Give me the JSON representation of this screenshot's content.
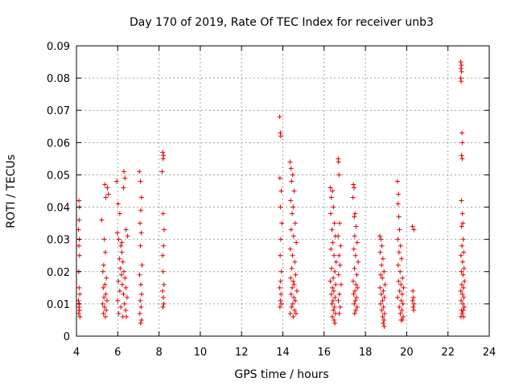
{
  "chart_data": {
    "type": "scatter",
    "title": "Day 170 of 2019, Rate Of TEC Index for receiver unb3",
    "xlabel": "GPS time / hours",
    "ylabel": "ROTI / TECUs",
    "xlim": [
      4,
      24
    ],
    "ylim": [
      0,
      0.09
    ],
    "grid": true,
    "marker": "+",
    "color": "#e00000",
    "x_ticks": [
      "4",
      "6",
      "8",
      "10",
      "12",
      "14",
      "16",
      "18",
      "20",
      "22",
      "24"
    ],
    "y_ticks": [
      "0",
      "0.01",
      "0.02",
      "0.03",
      "0.04",
      "0.05",
      "0.06",
      "0.07",
      "0.08",
      "0.09"
    ],
    "series": [
      {
        "name": "unb3",
        "points": [
          [
            4.12,
            0.042
          ],
          [
            4.15,
            0.04
          ],
          [
            4.13,
            0.036
          ],
          [
            4.1,
            0.033
          ],
          [
            4.14,
            0.03
          ],
          [
            4.12,
            0.028
          ],
          [
            4.15,
            0.025
          ],
          [
            4.11,
            0.02
          ],
          [
            4.13,
            0.015
          ],
          [
            4.16,
            0.013
          ],
          [
            4.1,
            0.011
          ],
          [
            4.14,
            0.01
          ],
          [
            4.12,
            0.009
          ],
          [
            4.15,
            0.008
          ],
          [
            4.11,
            0.007
          ],
          [
            4.17,
            0.006
          ],
          [
            5.22,
            0.036
          ],
          [
            5.35,
            0.03
          ],
          [
            5.4,
            0.026
          ],
          [
            5.32,
            0.022
          ],
          [
            5.28,
            0.02
          ],
          [
            5.45,
            0.018
          ],
          [
            5.38,
            0.016
          ],
          [
            5.3,
            0.015
          ],
          [
            5.42,
            0.013
          ],
          [
            5.33,
            0.012
          ],
          [
            5.48,
            0.011
          ],
          [
            5.27,
            0.01
          ],
          [
            5.36,
            0.009
          ],
          [
            5.44,
            0.008
          ],
          [
            5.31,
            0.007
          ],
          [
            5.4,
            0.006
          ],
          [
            5.38,
            0.047
          ],
          [
            5.5,
            0.046
          ],
          [
            5.55,
            0.044
          ],
          [
            5.42,
            0.043
          ],
          [
            5.95,
            0.048
          ],
          [
            6.02,
            0.041
          ],
          [
            6.1,
            0.038
          ],
          [
            5.98,
            0.032
          ],
          [
            6.05,
            0.03
          ],
          [
            6.15,
            0.028
          ],
          [
            6.2,
            0.026
          ],
          [
            6.08,
            0.024
          ],
          [
            6.25,
            0.023
          ],
          [
            6.12,
            0.021
          ],
          [
            6.3,
            0.02
          ],
          [
            6.18,
            0.019
          ],
          [
            6.35,
            0.018
          ],
          [
            6.03,
            0.017
          ],
          [
            6.22,
            0.016
          ],
          [
            6.4,
            0.015
          ],
          [
            6.1,
            0.014
          ],
          [
            6.28,
            0.013
          ],
          [
            6.45,
            0.012
          ],
          [
            6.0,
            0.011
          ],
          [
            6.33,
            0.01
          ],
          [
            6.15,
            0.009
          ],
          [
            6.38,
            0.008
          ],
          [
            6.05,
            0.007
          ],
          [
            6.25,
            0.006
          ],
          [
            6.42,
            0.006
          ],
          [
            6.3,
            0.051
          ],
          [
            6.35,
            0.049
          ],
          [
            6.28,
            0.046
          ],
          [
            6.4,
            0.033
          ],
          [
            6.48,
            0.031
          ],
          [
            6.2,
            0.029
          ],
          [
            7.05,
            0.051
          ],
          [
            7.1,
            0.048
          ],
          [
            7.15,
            0.043
          ],
          [
            7.12,
            0.039
          ],
          [
            7.08,
            0.035
          ],
          [
            7.14,
            0.032
          ],
          [
            7.1,
            0.028
          ],
          [
            7.18,
            0.022
          ],
          [
            7.06,
            0.019
          ],
          [
            7.12,
            0.016
          ],
          [
            7.16,
            0.013
          ],
          [
            7.09,
            0.011
          ],
          [
            7.13,
            0.009
          ],
          [
            7.07,
            0.007
          ],
          [
            7.15,
            0.005
          ],
          [
            7.11,
            0.004
          ],
          [
            8.18,
            0.057
          ],
          [
            8.22,
            0.056
          ],
          [
            8.2,
            0.055
          ],
          [
            8.15,
            0.051
          ],
          [
            8.2,
            0.038
          ],
          [
            8.25,
            0.033
          ],
          [
            8.22,
            0.028
          ],
          [
            8.18,
            0.025
          ],
          [
            8.2,
            0.02
          ],
          [
            8.24,
            0.016
          ],
          [
            8.17,
            0.014
          ],
          [
            8.21,
            0.012
          ],
          [
            8.23,
            0.01
          ],
          [
            8.19,
            0.009
          ],
          [
            13.85,
            0.068
          ],
          [
            13.88,
            0.063
          ],
          [
            13.9,
            0.062
          ],
          [
            13.86,
            0.049
          ],
          [
            13.92,
            0.045
          ],
          [
            13.88,
            0.04
          ],
          [
            13.95,
            0.035
          ],
          [
            13.9,
            0.03
          ],
          [
            13.87,
            0.025
          ],
          [
            13.93,
            0.02
          ],
          [
            13.89,
            0.017
          ],
          [
            13.85,
            0.015
          ],
          [
            13.91,
            0.013
          ],
          [
            13.88,
            0.011
          ],
          [
            13.94,
            0.01
          ],
          [
            13.86,
            0.009
          ],
          [
            14.35,
            0.054
          ],
          [
            14.4,
            0.052
          ],
          [
            14.48,
            0.05
          ],
          [
            14.42,
            0.048
          ],
          [
            14.55,
            0.045
          ],
          [
            14.38,
            0.042
          ],
          [
            14.5,
            0.04
          ],
          [
            14.45,
            0.038
          ],
          [
            14.6,
            0.035
          ],
          [
            14.4,
            0.033
          ],
          [
            14.52,
            0.031
          ],
          [
            14.65,
            0.029
          ],
          [
            14.36,
            0.027
          ],
          [
            14.47,
            0.025
          ],
          [
            14.58,
            0.023
          ],
          [
            14.43,
            0.021
          ],
          [
            14.62,
            0.019
          ],
          [
            14.38,
            0.018
          ],
          [
            14.5,
            0.017
          ],
          [
            14.55,
            0.016
          ],
          [
            14.45,
            0.015
          ],
          [
            14.68,
            0.014
          ],
          [
            14.4,
            0.013
          ],
          [
            14.53,
            0.012
          ],
          [
            14.6,
            0.011
          ],
          [
            14.48,
            0.01
          ],
          [
            14.42,
            0.009
          ],
          [
            14.57,
            0.008
          ],
          [
            14.36,
            0.007
          ],
          [
            14.64,
            0.007
          ],
          [
            14.5,
            0.006
          ],
          [
            16.3,
            0.046
          ],
          [
            16.4,
            0.045
          ],
          [
            16.35,
            0.043
          ],
          [
            16.45,
            0.04
          ],
          [
            16.32,
            0.038
          ],
          [
            16.5,
            0.035
          ],
          [
            16.38,
            0.033
          ],
          [
            16.55,
            0.031
          ],
          [
            16.42,
            0.029
          ],
          [
            16.33,
            0.027
          ],
          [
            16.48,
            0.025
          ],
          [
            16.58,
            0.023
          ],
          [
            16.36,
            0.021
          ],
          [
            16.52,
            0.02
          ],
          [
            16.44,
            0.018
          ],
          [
            16.3,
            0.017
          ],
          [
            16.56,
            0.016
          ],
          [
            16.4,
            0.015
          ],
          [
            16.47,
            0.014
          ],
          [
            16.35,
            0.013
          ],
          [
            16.53,
            0.012
          ],
          [
            16.43,
            0.011
          ],
          [
            16.38,
            0.01
          ],
          [
            16.5,
            0.009
          ],
          [
            16.45,
            0.008
          ],
          [
            16.55,
            0.007
          ],
          [
            16.4,
            0.006
          ],
          [
            16.48,
            0.005
          ],
          [
            16.52,
            0.004
          ],
          [
            16.68,
            0.055
          ],
          [
            16.7,
            0.054
          ],
          [
            16.72,
            0.05
          ],
          [
            16.75,
            0.035
          ],
          [
            16.68,
            0.031
          ],
          [
            16.8,
            0.028
          ],
          [
            16.72,
            0.025
          ],
          [
            16.77,
            0.022
          ],
          [
            16.7,
            0.019
          ],
          [
            16.82,
            0.016
          ],
          [
            16.74,
            0.013
          ],
          [
            16.69,
            0.011
          ],
          [
            16.78,
            0.009
          ],
          [
            16.73,
            0.007
          ],
          [
            17.42,
            0.047
          ],
          [
            17.45,
            0.046
          ],
          [
            17.4,
            0.043
          ],
          [
            17.5,
            0.038
          ],
          [
            17.46,
            0.037
          ],
          [
            17.55,
            0.034
          ],
          [
            17.48,
            0.031
          ],
          [
            17.6,
            0.029
          ],
          [
            17.44,
            0.027
          ],
          [
            17.52,
            0.025
          ],
          [
            17.65,
            0.023
          ],
          [
            17.47,
            0.021
          ],
          [
            17.58,
            0.019
          ],
          [
            17.41,
            0.017
          ],
          [
            17.54,
            0.016
          ],
          [
            17.62,
            0.015
          ],
          [
            17.49,
            0.014
          ],
          [
            17.43,
            0.013
          ],
          [
            17.57,
            0.012
          ],
          [
            17.51,
            0.011
          ],
          [
            17.46,
            0.01
          ],
          [
            17.6,
            0.009
          ],
          [
            17.53,
            0.008
          ],
          [
            17.48,
            0.007
          ],
          [
            18.7,
            0.031
          ],
          [
            18.75,
            0.03
          ],
          [
            18.8,
            0.028
          ],
          [
            18.72,
            0.026
          ],
          [
            18.85,
            0.024
          ],
          [
            18.78,
            0.022
          ],
          [
            18.9,
            0.02
          ],
          [
            18.74,
            0.019
          ],
          [
            18.82,
            0.018
          ],
          [
            18.95,
            0.016
          ],
          [
            18.71,
            0.015
          ],
          [
            18.87,
            0.014
          ],
          [
            18.77,
            0.013
          ],
          [
            18.92,
            0.012
          ],
          [
            18.83,
            0.011
          ],
          [
            18.73,
            0.01
          ],
          [
            18.88,
            0.009
          ],
          [
            18.79,
            0.008
          ],
          [
            18.93,
            0.007
          ],
          [
            18.84,
            0.006
          ],
          [
            18.9,
            0.005
          ],
          [
            18.86,
            0.004
          ],
          [
            18.91,
            0.003
          ],
          [
            19.55,
            0.048
          ],
          [
            19.6,
            0.044
          ],
          [
            19.58,
            0.041
          ],
          [
            19.62,
            0.037
          ],
          [
            19.65,
            0.033
          ],
          [
            19.57,
            0.03
          ],
          [
            19.7,
            0.028
          ],
          [
            19.63,
            0.026
          ],
          [
            19.75,
            0.024
          ],
          [
            19.59,
            0.022
          ],
          [
            19.68,
            0.02
          ],
          [
            19.8,
            0.018
          ],
          [
            19.61,
            0.017
          ],
          [
            19.72,
            0.016
          ],
          [
            19.85,
            0.015
          ],
          [
            19.66,
            0.014
          ],
          [
            19.78,
            0.013
          ],
          [
            19.56,
            0.012
          ],
          [
            19.74,
            0.011
          ],
          [
            19.82,
            0.01
          ],
          [
            19.64,
            0.009
          ],
          [
            19.77,
            0.008
          ],
          [
            19.69,
            0.007
          ],
          [
            19.83,
            0.006
          ],
          [
            19.73,
            0.005
          ],
          [
            19.79,
            0.005
          ],
          [
            20.28,
            0.034
          ],
          [
            20.35,
            0.033
          ],
          [
            20.3,
            0.014
          ],
          [
            20.33,
            0.012
          ],
          [
            20.28,
            0.011
          ],
          [
            20.36,
            0.01
          ],
          [
            20.31,
            0.009
          ],
          [
            20.34,
            0.008
          ],
          [
            22.62,
            0.085
          ],
          [
            22.65,
            0.084
          ],
          [
            22.63,
            0.083
          ],
          [
            22.66,
            0.082
          ],
          [
            22.62,
            0.08
          ],
          [
            22.64,
            0.079
          ],
          [
            22.68,
            0.063
          ],
          [
            22.7,
            0.06
          ],
          [
            22.66,
            0.056
          ],
          [
            22.69,
            0.055
          ],
          [
            22.65,
            0.042
          ],
          [
            22.7,
            0.038
          ],
          [
            22.72,
            0.035
          ],
          [
            22.66,
            0.034
          ],
          [
            22.74,
            0.03
          ],
          [
            22.68,
            0.028
          ],
          [
            22.76,
            0.026
          ],
          [
            22.63,
            0.025
          ],
          [
            22.71,
            0.023
          ],
          [
            22.78,
            0.021
          ],
          [
            22.65,
            0.02
          ],
          [
            22.73,
            0.019
          ],
          [
            22.8,
            0.017
          ],
          [
            22.67,
            0.016
          ],
          [
            22.75,
            0.015
          ],
          [
            22.62,
            0.014
          ],
          [
            22.7,
            0.013
          ],
          [
            22.77,
            0.012
          ],
          [
            22.64,
            0.011
          ],
          [
            22.72,
            0.01
          ],
          [
            22.79,
            0.009
          ],
          [
            22.66,
            0.008
          ],
          [
            22.74,
            0.008
          ],
          [
            22.69,
            0.007
          ],
          [
            22.76,
            0.006
          ],
          [
            22.63,
            0.006
          ]
        ]
      }
    ]
  }
}
